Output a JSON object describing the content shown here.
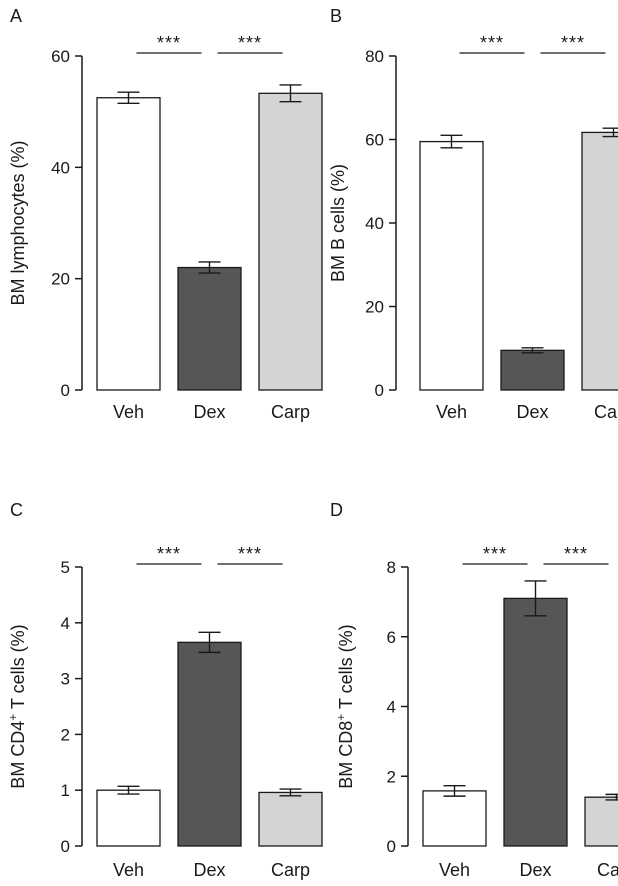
{
  "colors": {
    "Veh": "#ffffff",
    "Dex": "#565656",
    "Carp": "#d3d4d6",
    "axis": "#1a1a1a"
  },
  "chart_data": [
    {
      "panel": "A",
      "type": "bar",
      "categories": [
        "Veh",
        "Dex",
        "Carp"
      ],
      "values": [
        52.5,
        22,
        53.3
      ],
      "errors": [
        1,
        1,
        1.5
      ],
      "ylabel": "BM lymphocytes (%)",
      "ylim": [
        0,
        60
      ],
      "yticks": [
        0,
        20,
        40,
        60
      ],
      "significance": [
        {
          "from": 0,
          "to": 1,
          "label": "***"
        },
        {
          "from": 1,
          "to": 2,
          "label": "***"
        }
      ]
    },
    {
      "panel": "B",
      "type": "bar",
      "categories": [
        "Veh",
        "Dex",
        "Carp"
      ],
      "values": [
        59.5,
        9.5,
        61.7
      ],
      "errors": [
        1.5,
        0.6,
        1
      ],
      "ylabel": "BM B cells (%)",
      "ylim": [
        0,
        80
      ],
      "yticks": [
        0,
        20,
        40,
        60,
        80
      ],
      "significance": [
        {
          "from": 0,
          "to": 1,
          "label": "***"
        },
        {
          "from": 1,
          "to": 2,
          "label": "***"
        }
      ]
    },
    {
      "panel": "C",
      "type": "bar",
      "categories": [
        "Veh",
        "Dex",
        "Carp"
      ],
      "values": [
        1.0,
        3.65,
        0.96
      ],
      "errors": [
        0.07,
        0.18,
        0.06
      ],
      "ylabel": "BM CD4⁺ T cells (%)",
      "ylim": [
        0,
        5
      ],
      "yticks": [
        0,
        1,
        2,
        3,
        4,
        5
      ],
      "significance": [
        {
          "from": 0,
          "to": 1,
          "label": "***"
        },
        {
          "from": 1,
          "to": 2,
          "label": "***"
        }
      ]
    },
    {
      "panel": "D",
      "type": "bar",
      "categories": [
        "Veh",
        "Dex",
        "Carp"
      ],
      "values": [
        1.58,
        7.1,
        1.4
      ],
      "errors": [
        0.15,
        0.5,
        0.08
      ],
      "ylabel": "BM CD8⁺ T cells (%)",
      "ylim": [
        0,
        8
      ],
      "yticks": [
        0,
        2,
        4,
        6,
        8
      ],
      "significance": [
        {
          "from": 0,
          "to": 1,
          "label": "***"
        },
        {
          "from": 1,
          "to": 2,
          "label": "***"
        }
      ]
    }
  ]
}
